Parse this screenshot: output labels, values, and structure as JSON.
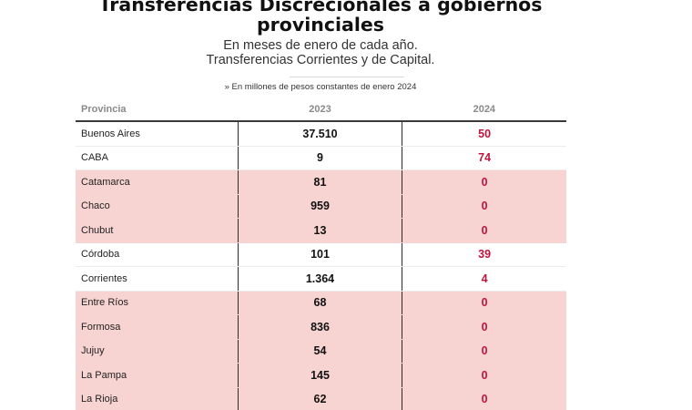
{
  "title": "Transferencias Discrecionales a gobiernos provinciales",
  "subtitle_line1": "En meses de enero de cada año.",
  "subtitle_line2": "Transferencias Corrientes y de Capital.",
  "note": "» En millones de pesos constantes de enero 2024",
  "colors": {
    "highlight_row": "#f7d4d2",
    "value_2024": "#c0143c",
    "header_text": "#8a8a8a"
  },
  "chart_data": {
    "type": "table",
    "columns": [
      "Provincia",
      "2023",
      "2024"
    ],
    "rows": [
      {
        "provincia": "Buenos Aires",
        "y2023": "37.510",
        "y2024": "50"
      },
      {
        "provincia": "CABA",
        "y2023": "9",
        "y2024": "74"
      },
      {
        "provincia": "Catamarca",
        "y2023": "81",
        "y2024": "0"
      },
      {
        "provincia": "Chaco",
        "y2023": "959",
        "y2024": "0"
      },
      {
        "provincia": "Chubut",
        "y2023": "13",
        "y2024": "0"
      },
      {
        "provincia": "Córdoba",
        "y2023": "101",
        "y2024": "39"
      },
      {
        "provincia": "Corrientes",
        "y2023": "1.364",
        "y2024": "4"
      },
      {
        "provincia": "Entre Ríos",
        "y2023": "68",
        "y2024": "0"
      },
      {
        "provincia": "Formosa",
        "y2023": "836",
        "y2024": "0"
      },
      {
        "provincia": "Jujuy",
        "y2023": "54",
        "y2024": "0"
      },
      {
        "provincia": "La Pampa",
        "y2023": "145",
        "y2024": "0"
      },
      {
        "provincia": "La Rioja",
        "y2023": "62",
        "y2024": "0"
      }
    ]
  }
}
